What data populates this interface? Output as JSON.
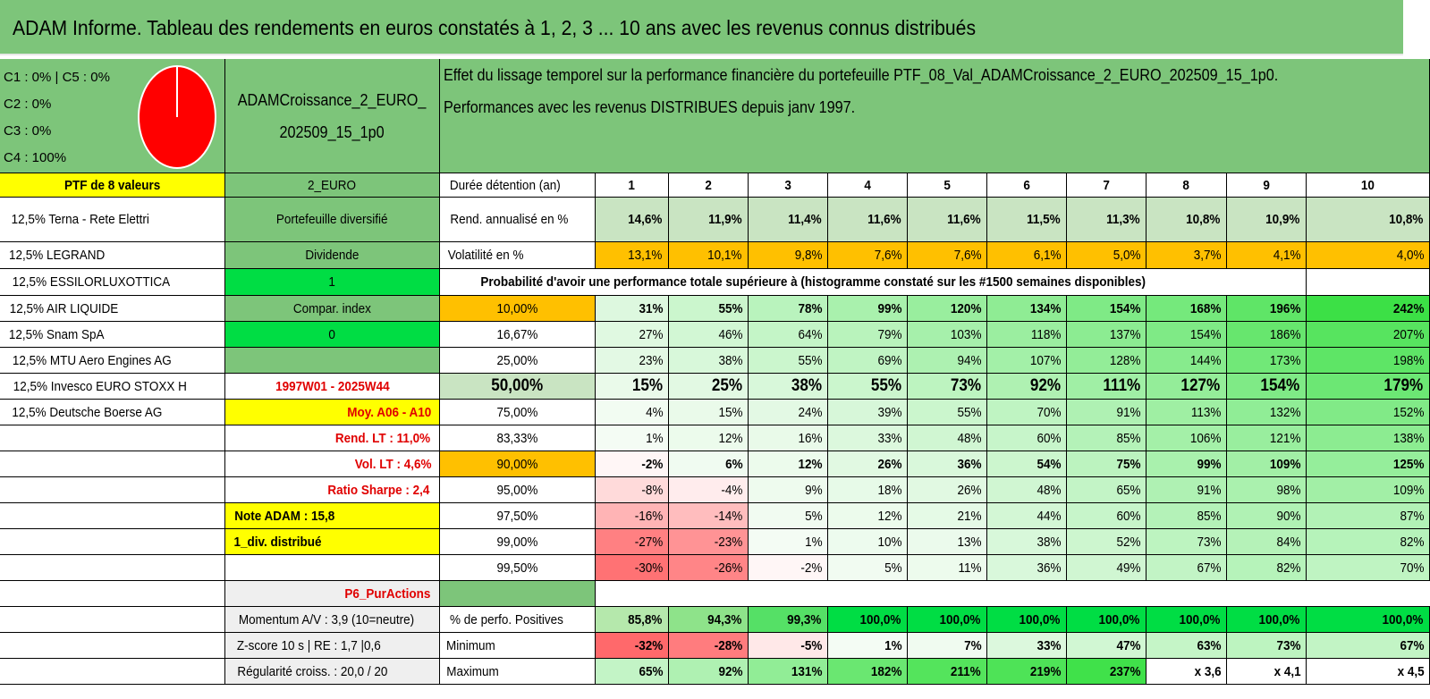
{
  "title": "ADAM Informe. Tableau des rendements en euros constatés à 1, 2, 3 ... 10 ans avec les revenus connus distribués",
  "header": {
    "legend": [
      "C1 : 0% | C5 : 0%",
      "C2 : 0%",
      "C3 : 0%",
      "C4 : 100%"
    ],
    "pie_color": "#ff0000",
    "portfolio_name_1": "ADAMCroissance_2_EURO_",
    "portfolio_name_2": "202509_15_1p0",
    "description_1": "Effet du lissage temporel sur la performance financière du portefeuille PTF_08_Val_ADAMCroissance_2_EURO_202509_15_1p0.",
    "description_2": "Performances avec les revenus DISTRIBUES depuis janv 1997."
  },
  "left": {
    "ptf_label": "PTF de 8 valeurs",
    "holdings": [
      "12,5% Terna - Rete Elettri",
      "12,5% LEGRAND",
      "12,5% ESSILORLUXOTTICA",
      "12,5% AIR LIQUIDE",
      "12,5% Snam SpA",
      "12,5% MTU Aero Engines AG",
      "12,5% Invesco EURO STOXX H",
      "12,5% Deutsche Boerse AG"
    ]
  },
  "mid": {
    "code": "2_EURO",
    "type": "Portefeuille diversifié",
    "dividend_label": "Dividende",
    "dividend_value": "1",
    "index_label": "Compar. index",
    "index_value": "0",
    "period": "1997W01 - 2025W44",
    "moy": "Moy. A06 - A10",
    "rend_lt": "Rend. LT : 11,0%",
    "vol_lt": "Vol. LT : 4,6%",
    "sharpe": "Ratio Sharpe : 2,4",
    "note": "Note ADAM : 15,8",
    "div": "1_div. distribué",
    "p6": "P6_PurActions",
    "momentum": "Momentum A/V : 3,9 (10=neutre)",
    "zscore": "Z-score 10 s | RE : 1,7 |0,6",
    "regularite": "Régularité croiss. : 20,0 / 20"
  },
  "table": {
    "duree_label": "Durée détention (an)",
    "years": [
      "1",
      "2",
      "3",
      "4",
      "5",
      "6",
      "7",
      "8",
      "9",
      "10"
    ],
    "rend_label": "Rend. annualisé en %",
    "rend": [
      "14,6%",
      "11,9%",
      "11,4%",
      "11,6%",
      "11,6%",
      "11,5%",
      "11,3%",
      "10,8%",
      "10,9%",
      "10,8%"
    ],
    "vol_label": "Volatilité en %",
    "vol": [
      "13,1%",
      "10,1%",
      "9,8%",
      "7,6%",
      "7,6%",
      "6,1%",
      "5,0%",
      "3,7%",
      "4,1%",
      "4,0%"
    ],
    "prob_label": "Probabilité d'avoir une performance totale supérieure à (histogramme constaté sur les #1500 semaines disponibles)",
    "prob_rows": [
      {
        "p": "10,00%",
        "v": [
          "31%",
          "55%",
          "78%",
          "99%",
          "120%",
          "134%",
          "154%",
          "168%",
          "196%",
          "242%"
        ]
      },
      {
        "p": "16,67%",
        "v": [
          "27%",
          "46%",
          "64%",
          "79%",
          "103%",
          "118%",
          "137%",
          "154%",
          "186%",
          "207%"
        ]
      },
      {
        "p": "25,00%",
        "v": [
          "23%",
          "38%",
          "55%",
          "69%",
          "94%",
          "107%",
          "128%",
          "144%",
          "173%",
          "198%"
        ]
      },
      {
        "p": "50,00%",
        "v": [
          "15%",
          "25%",
          "38%",
          "55%",
          "73%",
          "92%",
          "111%",
          "127%",
          "154%",
          "179%"
        ]
      },
      {
        "p": "75,00%",
        "v": [
          "4%",
          "15%",
          "24%",
          "39%",
          "55%",
          "70%",
          "91%",
          "113%",
          "132%",
          "152%"
        ]
      },
      {
        "p": "83,33%",
        "v": [
          "1%",
          "12%",
          "16%",
          "33%",
          "48%",
          "60%",
          "85%",
          "106%",
          "121%",
          "138%"
        ]
      },
      {
        "p": "90,00%",
        "v": [
          "-2%",
          "6%",
          "12%",
          "26%",
          "36%",
          "54%",
          "75%",
          "99%",
          "109%",
          "125%"
        ]
      },
      {
        "p": "95,00%",
        "v": [
          "-8%",
          "-4%",
          "9%",
          "18%",
          "26%",
          "48%",
          "65%",
          "91%",
          "98%",
          "109%"
        ]
      },
      {
        "p": "97,50%",
        "v": [
          "-16%",
          "-14%",
          "5%",
          "12%",
          "21%",
          "44%",
          "60%",
          "85%",
          "90%",
          "87%"
        ]
      },
      {
        "p": "99,00%",
        "v": [
          "-27%",
          "-23%",
          "1%",
          "10%",
          "13%",
          "38%",
          "52%",
          "73%",
          "84%",
          "82%"
        ]
      },
      {
        "p": "99,50%",
        "v": [
          "-30%",
          "-26%",
          "-2%",
          "5%",
          "11%",
          "36%",
          "49%",
          "67%",
          "82%",
          "70%"
        ]
      }
    ],
    "pos_label": "% de perfo. Positives",
    "pos": [
      "85,8%",
      "94,3%",
      "99,3%",
      "100,0%",
      "100,0%",
      "100,0%",
      "100,0%",
      "100,0%",
      "100,0%",
      "100,0%"
    ],
    "min_label": "Minimum",
    "min": [
      "-32%",
      "-28%",
      "-5%",
      "1%",
      "7%",
      "33%",
      "47%",
      "63%",
      "73%",
      "67%"
    ],
    "max_label": "Maximum",
    "max": [
      "65%",
      "92%",
      "131%",
      "182%",
      "211%",
      "219%",
      "237%",
      "x 3,6",
      "x 4,1",
      "x 4,5"
    ]
  },
  "colors": {
    "header_green": "#7dc57a",
    "bright_green": "#00dd44",
    "yellow": "#ffff00",
    "orange": "#ffc000",
    "negative_red": "#f8696b"
  }
}
